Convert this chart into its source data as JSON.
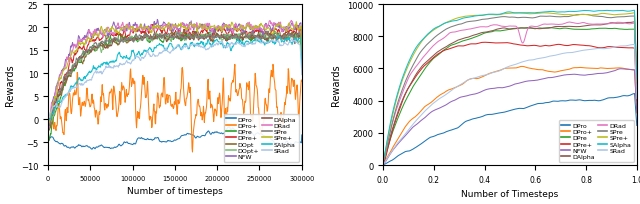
{
  "left_xlabel": "Number of timesteps",
  "right_xlabel": "Number of Timesteps",
  "left_ylabel": "Rewards",
  "right_ylabel": "Rewards",
  "left_xlim": [
    0,
    300000
  ],
  "left_ylim": [
    -10,
    25
  ],
  "right_xlim": [
    0,
    1000000
  ],
  "right_ylim": [
    0,
    10000
  ],
  "colors": {
    "DPro": "#1f77b4",
    "DPro+": "#ff7f0e",
    "DPre": "#2ca02c",
    "DPre+": "#d62728",
    "DOpt": "#8c6d31",
    "DOpt+": "#7fbf7b",
    "NFW": "#9467bd",
    "DAlpha": "#8c564b",
    "DRad": "#e377c2",
    "SPre": "#7f7f7f",
    "SPre+": "#bcbd22",
    "SAlpha": "#17becf",
    "SRad": "#aec7e8"
  },
  "left_legend_col1": [
    "DPro",
    "DPro+",
    "DPre",
    "DPre+",
    "DOpt",
    "DOpt+",
    "NFW"
  ],
  "left_legend_col2": [
    "DAlpha",
    "DRad",
    "SPre",
    "SPre+",
    "SAlpha",
    "SRad"
  ],
  "right_legend_col1": [
    "DPro",
    "DPro+",
    "DPre",
    "DPre+",
    "NFW",
    "DAlpha"
  ],
  "right_legend_col2": [
    "DRad",
    "SPre",
    "SPre+",
    "SAlpha",
    "SRad"
  ]
}
